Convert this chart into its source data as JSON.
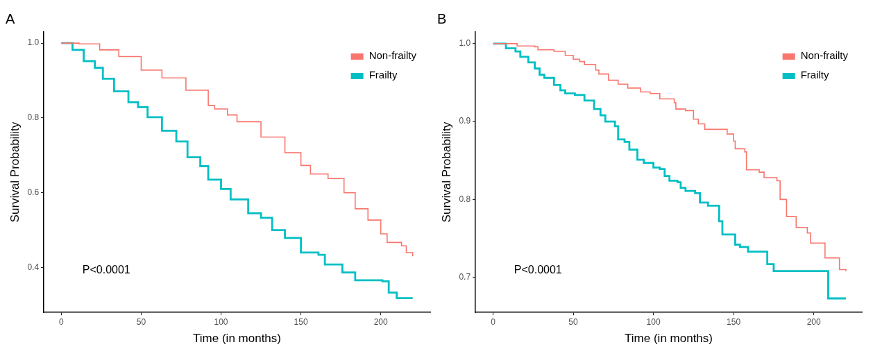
{
  "chart_data": [
    {
      "type": "step",
      "title": "A",
      "xlabel": "Time (in months)",
      "ylabel": "Survival Probability",
      "xlim": [
        -11,
        231
      ],
      "ylim": [
        0.28,
        1.03
      ],
      "xticks": [
        0,
        50,
        100,
        150,
        200
      ],
      "yticks": [
        0.4,
        0.6,
        0.8,
        {
          "value": 1,
          "label": "1.0"
        }
      ],
      "grid": false,
      "legend": "top right",
      "annotations": [
        "P<0.0001"
      ],
      "series": [
        {
          "name": "Non-frailty",
          "color": "#f8766d",
          "x": [
            0,
            11,
            24,
            36,
            50,
            63,
            78,
            92,
            96,
            104,
            110,
            125,
            140,
            150,
            156,
            167,
            177,
            184,
            192,
            200,
            204,
            213,
            216,
            220
          ],
          "values": [
            1.0,
            0.998,
            0.982,
            0.964,
            0.928,
            0.907,
            0.874,
            0.833,
            0.824,
            0.808,
            0.79,
            0.749,
            0.707,
            0.673,
            0.65,
            0.638,
            0.6,
            0.557,
            0.527,
            0.49,
            0.467,
            0.458,
            0.44,
            0.43
          ]
        },
        {
          "name": "Frailty",
          "color": "#00bfc4",
          "x": [
            0,
            7,
            14,
            21,
            26,
            33,
            42,
            48,
            54,
            63,
            72,
            79,
            87,
            92,
            100,
            106,
            117,
            125,
            132,
            140,
            150,
            161,
            165,
            176,
            184,
            201,
            205,
            210,
            220
          ],
          "values": [
            1.0,
            0.982,
            0.952,
            0.934,
            0.905,
            0.871,
            0.842,
            0.829,
            0.802,
            0.766,
            0.737,
            0.695,
            0.671,
            0.635,
            0.61,
            0.582,
            0.545,
            0.533,
            0.5,
            0.479,
            0.44,
            0.434,
            0.408,
            0.387,
            0.366,
            0.363,
            0.333,
            0.318,
            0.318
          ]
        }
      ]
    },
    {
      "type": "step",
      "title": "B",
      "xlabel": "Time (in months)",
      "ylabel": "Survival Probability",
      "xlim": [
        -11,
        230
      ],
      "ylim": [
        0.655,
        1.015
      ],
      "xticks": [
        0,
        50,
        100,
        150,
        200
      ],
      "yticks": [
        0.7,
        0.8,
        0.9,
        {
          "value": 1,
          "label": "1.0"
        }
      ],
      "grid": false,
      "legend": "top right",
      "annotations": [
        "P<0.0001"
      ],
      "series": [
        {
          "name": "Non-frailty",
          "color": "#f8766d",
          "x": [
            0,
            15,
            26,
            28,
            38,
            45,
            50,
            54,
            57,
            64,
            66,
            72,
            78,
            84,
            92,
            98,
            104,
            113,
            114,
            120,
            125,
            128,
            132,
            146,
            150,
            151,
            157,
            158,
            166,
            169,
            177,
            179,
            183,
            189,
            196,
            198,
            207,
            216,
            220
          ],
          "values": [
            1.0,
            0.997,
            0.996,
            0.992,
            0.99,
            0.985,
            0.98,
            0.977,
            0.973,
            0.966,
            0.961,
            0.953,
            0.948,
            0.943,
            0.938,
            0.936,
            0.929,
            0.924,
            0.916,
            0.914,
            0.903,
            0.897,
            0.89,
            0.884,
            0.875,
            0.865,
            0.861,
            0.838,
            0.835,
            0.828,
            0.824,
            0.8,
            0.778,
            0.764,
            0.757,
            0.744,
            0.725,
            0.71,
            0.708
          ]
        },
        {
          "name": "Frailty",
          "color": "#00bfc4",
          "x": [
            0,
            8,
            14,
            17,
            22,
            26,
            29,
            32,
            38,
            42,
            45,
            51,
            57,
            63,
            67,
            70,
            76,
            78,
            82,
            85,
            90,
            94,
            100,
            104,
            107,
            110,
            115,
            117,
            120,
            126,
            129,
            134,
            141,
            143,
            151,
            154,
            159,
            171,
            175,
            209,
            220
          ],
          "values": [
            1.0,
            0.994,
            0.99,
            0.983,
            0.976,
            0.968,
            0.96,
            0.956,
            0.947,
            0.94,
            0.936,
            0.934,
            0.927,
            0.916,
            0.908,
            0.9,
            0.894,
            0.877,
            0.874,
            0.864,
            0.851,
            0.847,
            0.841,
            0.839,
            0.83,
            0.824,
            0.822,
            0.815,
            0.811,
            0.808,
            0.796,
            0.792,
            0.772,
            0.755,
            0.742,
            0.739,
            0.733,
            0.717,
            0.708,
            0.673,
            0.673
          ]
        }
      ]
    }
  ]
}
